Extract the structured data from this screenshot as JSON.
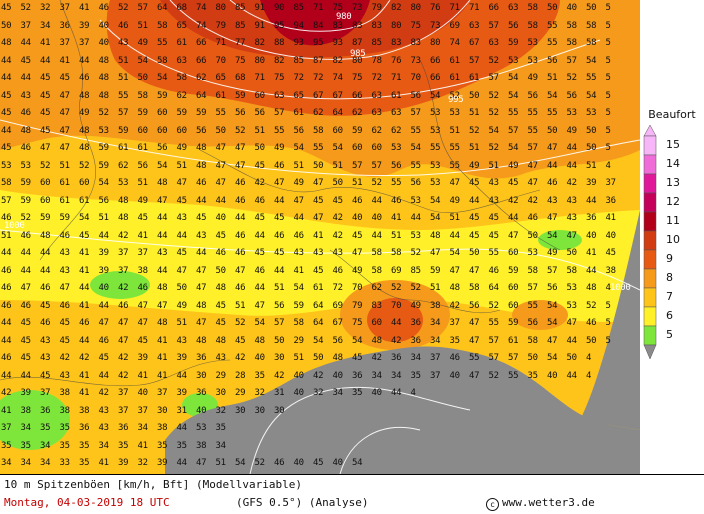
{
  "legend": {
    "title": "Beaufort",
    "levels": [
      {
        "label": "15",
        "color": "#f7b6f7"
      },
      {
        "label": "14",
        "color": "#f06cd8"
      },
      {
        "label": "13",
        "color": "#e0189a"
      },
      {
        "label": "12",
        "color": "#c4005a"
      },
      {
        "label": "11",
        "color": "#b2001a"
      },
      {
        "label": "10",
        "color": "#d23c12"
      },
      {
        "label": "9",
        "color": "#e65a14"
      },
      {
        "label": "8",
        "color": "#f59a1a"
      },
      {
        "label": "7",
        "color": "#ffc41a"
      },
      {
        "label": "6",
        "color": "#fff02a"
      },
      {
        "label": "5",
        "color": "#7ee63a"
      }
    ],
    "lower_color": "#8a8a8a"
  },
  "footer": {
    "line1": "10 m Spitzenböen [km/h, Bft] (Modellvariable)",
    "date": "Montag, 04-03-2019  18 UTC",
    "model": "(GFS 0.5°)  (Analyse)",
    "copyright_symbol": "c",
    "copyright": "www.wetter3.de"
  },
  "isobar_labels": [
    "980",
    "985",
    "995",
    "1000",
    "1000"
  ],
  "grid_rows": [
    "45 52 32 37 41 46 52 57 64 68 74 80 85 91 90 85 71 75 73 79 82 80 76 71 71 66 63 58 50 40 50 5",
    "50 37 34 36 39 40 46 51 58 65 74 79 85 91 95 94 84 83 83 83 80 75 73 69 63 57 56 58 55 58 58 5",
    "48 44 41 37 37 40 43 49 55 61 66 71 77 82 88 93 95 93 87 85 83 83 80 74 67 63 59 53 55 58 58 5",
    "44 45 44 41 44 48 51 54 58 63 66 70 75 80 82 85 87 82 80 78 76 73 66 61 57 52 53 53 56 57 54 5",
    "44 44 45 45 46 48 51 50 54 58 62 65 68 71 75 72 72 74 75 72 71 70 66 61 61 57 54 49 51 52 55 5",
    "45 43 45 47 48 48 55 58 59 62 64 61 59 60 63 65 67 67 66 63 61 56 54 52 50 52 54 56 54 56 54 5",
    "45 46 45 47 49 52 57 59 60 59 59 55 56 56 57 61 62 64 62 63 63 57 53 53 51 52 55 55 55 53 53 5",
    "44 48 45 47 48 53 59 60 60 60 56 50 52 51 55 56 58 60 59 62 62 55 53 51 52 54 57 55 50 49 50 5",
    "45 46 47 47 48 59 61 61 56 49 48 47 47 50 49 54 55 54 60 60 53 54 55 55 51 52 54 57 47 44 50 5",
    "53 53 52 51 52 59 62 56 54 51 48 47 47 45 46 51 50 51 57 57 56 55 53 55 49 51 49 47 44 44 51 4",
    "58 59 60 61 60 54 53 51 48 47 46 47 46 42 47 49 47 50 51 52 55 56 53 47 45 43 45 47 46 42 39 37",
    "57 59 60 61 61 56 48 49 47 45 44 44 46 46 44 47 45 45 46 44 46 53 54 49 44 43 42 42 43 43 44 36",
    "46 52 59 59 54 51 48 45 44 43 45 40 44 45 45 44 47 42 40 40 41 44 54 51 45 45 44 46 47 43 36 41",
    "51 46 48 46 45 44 42 41 44 44 43 45 46 44 46 46 41 42 45 44 51 53 48 44 45 45 47 50 54 47 40 40",
    "44 44 44 43 41 39 37 37 43 45 44 46 46 45 45 43 43 43 47 58 58 52 47 54 50 55 60 53 49 50 41 45",
    "46 44 44 43 41 39 37 38 44 47 47 50 47 46 44 41 45 46 49 58 69 85 59 47 47 46 59 58 57 58 44 38",
    "46 47 46 47 44 40 42 46 48 50 47 48 46 44 51 54 61 72 70 62 52 52 51 48 58 64 60 57 56 53 48 4",
    "46 46 45 46 41 44 46 47 47 49 48 45 51 47 56 59 64 69 79 83 70 49 38 42 56 52 60 55 54 53 52 5",
    "44 45 46 45 46 47 47 47 48 51 47 45 52 54 57 58 64 67 75 60 44 36 34 37 47 55 59 56 54 47 46 5",
    "44 45 43 45 44 46 47 45 41 43 48 48 45 48 50 29 54 56 54 48 42 36 34 35 47 57 61 58 47 44 50 5",
    "46 45 43 42 42 45 42 39 41 39 36 43 42 40 30 51 50 48 45 42 36 34 37 46 55 57 57 50 54 50 4",
    "44 44 45 43 41 44 42 41 41 44 30 29 28 35 42 40 42 40 36 34 34 35 37 40 47 52 55 35 40 44 4",
    "42 39 37 38 41 42 37 40 37 39 36 30 29 32 31 40 32 34 35 40 44 4",
    "41 38 36 38 38 43 37 37 30 31 40 32 30 30 30",
    "37 34 35 35 36 43 36 34 38 44 53 35",
    "35 35 34 35 35 34 35 41 35 35 38 34",
    "34 34 34 33 35 41 39 32 39 44 47 51 54 52 46 40 45 40 54"
  ]
}
